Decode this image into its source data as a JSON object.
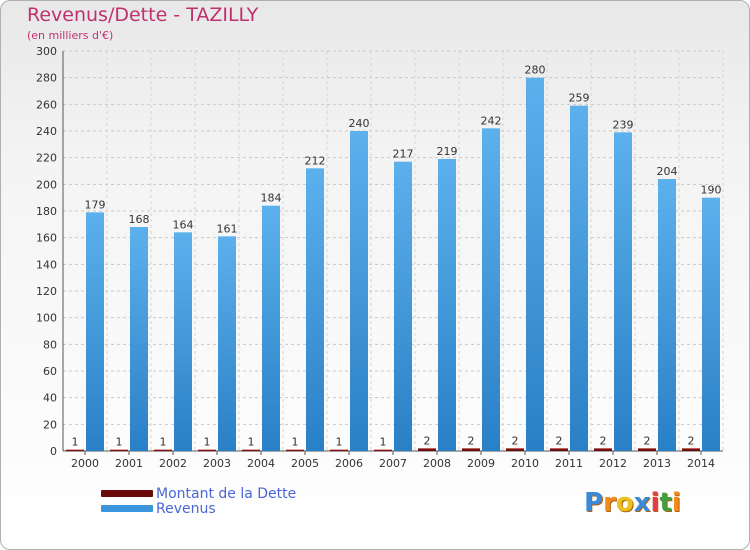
{
  "colors": {
    "title": "#c0306e",
    "dette": "#6b0a0a",
    "revenus": "#3a96dc",
    "axis_text": "#333333",
    "legend_text": "#4a66d6"
  },
  "chart_data": {
    "type": "bar",
    "title": "Revenus/Dette - TAZILLY",
    "subtitle": "(en milliers d'€)",
    "categories": [
      "2000",
      "2001",
      "2002",
      "2003",
      "2004",
      "2005",
      "2006",
      "2007",
      "2008",
      "2009",
      "2010",
      "2011",
      "2012",
      "2013",
      "2014"
    ],
    "series": [
      {
        "name": "Montant de la Dette",
        "values": [
          1,
          1,
          1,
          1,
          1,
          1,
          1,
          1,
          2,
          2,
          2,
          2,
          2,
          2,
          2
        ]
      },
      {
        "name": "Revenus",
        "values": [
          179,
          168,
          164,
          161,
          184,
          212,
          240,
          217,
          219,
          242,
          280,
          259,
          239,
          204,
          190
        ]
      }
    ],
    "ylim": [
      0,
      300
    ],
    "yticks": [
      0,
      20,
      40,
      60,
      80,
      100,
      120,
      140,
      160,
      180,
      200,
      220,
      240,
      260,
      280,
      300
    ],
    "grid": true,
    "legend_position": "bottom-left"
  },
  "logo": {
    "text": "Proxiti",
    "letters": [
      "P",
      "r",
      "o",
      "x",
      "i",
      "t",
      "i"
    ]
  }
}
